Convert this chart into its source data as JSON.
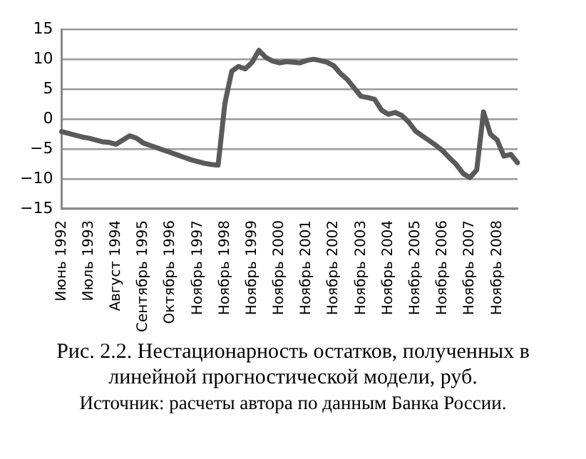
{
  "chart_data": {
    "type": "line",
    "title": "Рис. 2.2. Нестационарность остатков, полученных в линейной прогностической модели, руб.",
    "annotations": [
      "Источник: расчеты автора по данным Банка России."
    ],
    "categories": [
      "Июнь 1992",
      null,
      null,
      null,
      "Июль 1993",
      null,
      null,
      null,
      "Август 1994",
      null,
      null,
      null,
      "Сентябрь 1995",
      null,
      null,
      null,
      "Октябрь 1996",
      null,
      null,
      null,
      "Ноябрь 1997",
      null,
      null,
      null,
      "Ноябрь 1998",
      null,
      null,
      null,
      "Ноябрь 1999",
      null,
      null,
      null,
      "Ноябрь 2000",
      null,
      null,
      null,
      "Ноябрь 2001",
      null,
      null,
      null,
      "Ноябрь 2002",
      null,
      null,
      null,
      "Ноябрь 2003",
      null,
      null,
      null,
      "Ноябрь 2004",
      null,
      null,
      null,
      "Ноябрь 2005",
      null,
      null,
      null,
      "Ноябрь 2006",
      null,
      null,
      null,
      "Ноябрь 2007",
      null,
      null,
      null,
      "Ноябрь 2008",
      null,
      null,
      null
    ],
    "series": [
      {
        "color": "#5a5a5a",
        "values": [
          -2.1,
          -2.4,
          -2.7,
          -3.0,
          -3.2,
          -3.5,
          -3.8,
          -3.9,
          -4.2,
          -3.5,
          -2.8,
          -3.2,
          -4.0,
          -4.4,
          -4.8,
          -5.2,
          -5.6,
          -6.0,
          -6.4,
          -6.8,
          -7.1,
          -7.4,
          -7.6,
          -7.7,
          2.7,
          8.0,
          8.8,
          8.4,
          9.5,
          11.5,
          10.3,
          9.7,
          9.4,
          9.6,
          9.5,
          9.4,
          9.8,
          10.0,
          9.8,
          9.5,
          8.9,
          7.6,
          6.6,
          5.2,
          3.8,
          3.6,
          3.3,
          1.5,
          0.8,
          1.1,
          0.6,
          -0.5,
          -2.0,
          -2.8,
          -3.6,
          -4.4,
          -5.3,
          -6.5,
          -7.6,
          -9.1,
          -9.8,
          -8.5,
          1.2,
          -2.5,
          -3.5,
          -6.2,
          -5.9,
          -7.3
        ]
      }
    ],
    "ylim": [
      -15,
      15
    ],
    "yticks": [
      -15,
      -10,
      -5,
      0,
      5,
      10,
      15
    ],
    "grid": "y",
    "legend": false,
    "marker": "none",
    "line_style": "solid"
  }
}
